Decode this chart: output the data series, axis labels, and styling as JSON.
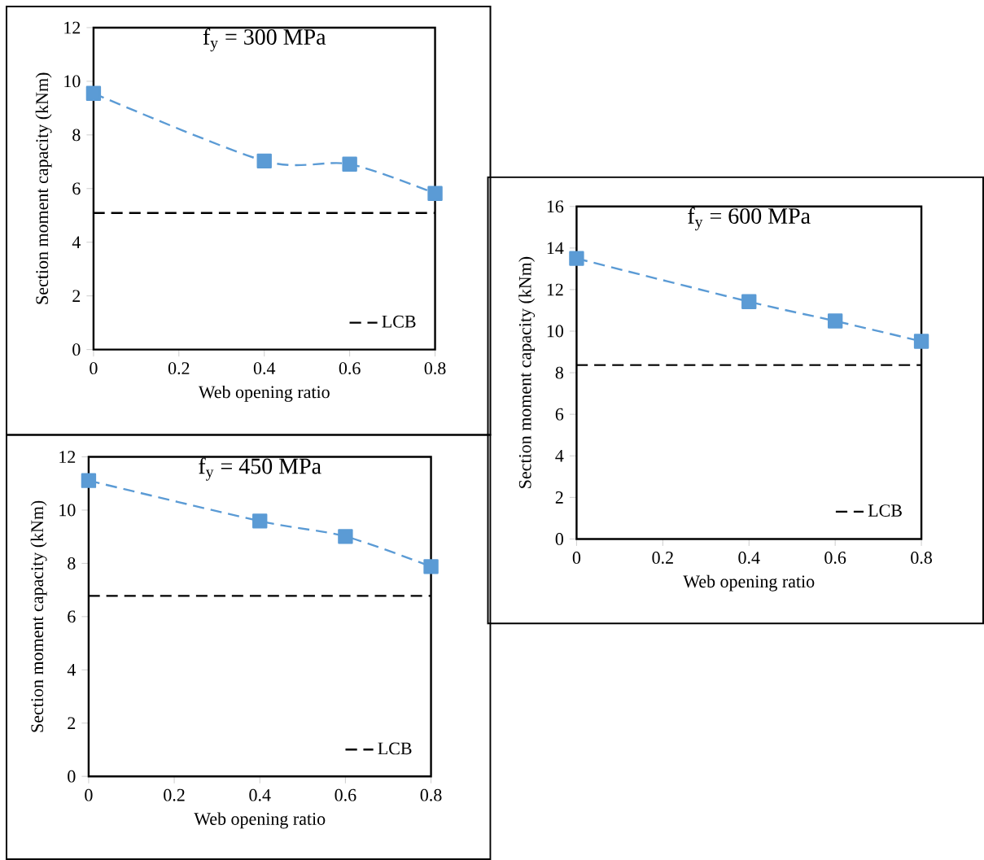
{
  "chart_data": [
    {
      "type": "line",
      "title": "f$_{y}$ = 300 MPa",
      "xlabel": "Web opening ratio",
      "ylabel": "Section moment capacity (kNm)",
      "x": [
        0,
        0.4,
        0.6,
        0.8
      ],
      "xlim": [
        0,
        0.8
      ],
      "ylim": [
        0,
        12
      ],
      "xticks": [
        0,
        0.2,
        0.4,
        0.6,
        0.8
      ],
      "yticks": [
        0,
        2,
        4,
        6,
        8,
        10,
        12
      ],
      "grid": false,
      "legend": "bottom right",
      "series": [
        {
          "color": "#5b9bd5",
          "marker": "square",
          "line_style": "dashed",
          "values": [
            9.55,
            7.03,
            6.91,
            5.82
          ]
        },
        {
          "name": "LCB",
          "color": "#000000",
          "marker": "none",
          "line_style": "dashed",
          "values": [
            5.09,
            5.09,
            5.09,
            5.09
          ]
        }
      ]
    },
    {
      "type": "line",
      "title": "f$_{y}$ = 600 MPa",
      "xlabel": "Web opening ratio",
      "ylabel": "Section moment capacity (kNm)",
      "x": [
        0,
        0.4,
        0.6,
        0.8
      ],
      "xlim": [
        0,
        0.8
      ],
      "ylim": [
        0,
        16
      ],
      "xticks": [
        0,
        0.2,
        0.4,
        0.6,
        0.8
      ],
      "yticks": [
        0,
        2,
        4,
        6,
        8,
        10,
        12,
        14,
        16
      ],
      "grid": false,
      "legend": "bottom right",
      "series": [
        {
          "color": "#5b9bd5",
          "marker": "square",
          "line_style": "dashed",
          "values": [
            13.5,
            11.42,
            10.49,
            9.51
          ]
        },
        {
          "name": "LCB",
          "color": "#000000",
          "marker": "none",
          "line_style": "dashed",
          "values": [
            8.37,
            8.37,
            8.37,
            8.37
          ]
        }
      ]
    },
    {
      "type": "line",
      "title": "f$_{y}$ = 450 MPa",
      "xlabel": "Web opening ratio",
      "ylabel": "Section moment capacity (kNm)",
      "x": [
        0,
        0.4,
        0.6,
        0.8
      ],
      "xlim": [
        0,
        0.8
      ],
      "ylim": [
        0,
        12
      ],
      "xticks": [
        0,
        0.2,
        0.4,
        0.6,
        0.8
      ],
      "yticks": [
        0,
        2,
        4,
        6,
        8,
        10,
        12
      ],
      "grid": false,
      "legend": "bottom right",
      "series": [
        {
          "color": "#5b9bd5",
          "marker": "square",
          "line_style": "dashed",
          "values": [
            11.11,
            9.59,
            9.01,
            7.88
          ]
        },
        {
          "name": "LCB",
          "color": "#000000",
          "marker": "none",
          "line_style": "dashed",
          "values": [
            6.78,
            6.78,
            6.78,
            6.78
          ]
        }
      ]
    }
  ]
}
